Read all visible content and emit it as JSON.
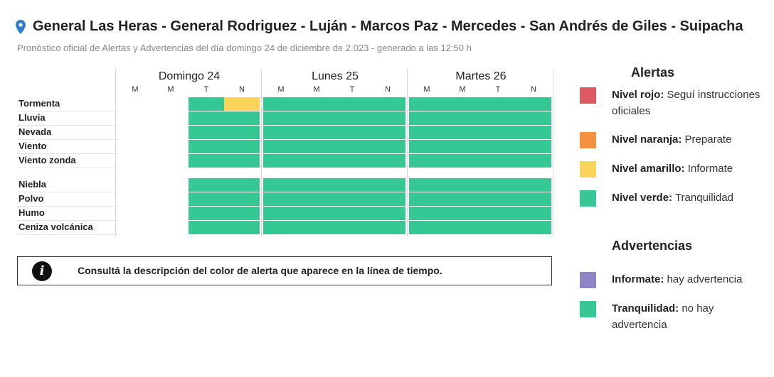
{
  "header": {
    "title": "General Las Heras - General Rodriguez - Luján - Marcos Paz - Mercedes - San Andrés de Giles - Suipacha",
    "subtitle": "Pronóstico oficial de Alertas y Advertencias del día domingo 24 de diciembre de 2.023 - generado a las 12:50 h",
    "icon": "location-pin-icon"
  },
  "colors": {
    "rojo": "#dc5b62",
    "naranja": "#f59242",
    "amarillo": "#fdd35b",
    "verde": "#35c895",
    "violeta": "#8e84c6",
    "empty": "#ffffff"
  },
  "timeline": {
    "days": [
      "Domingo 24",
      "Lunes 25",
      "Martes 26"
    ],
    "periods": [
      "M",
      "M",
      "T",
      "N"
    ],
    "rows": [
      {
        "label": "Tormenta",
        "levels": [
          "none",
          "none",
          "verde",
          "amarillo",
          "verde",
          "verde",
          "verde",
          "verde",
          "verde",
          "verde",
          "verde",
          "verde"
        ]
      },
      {
        "label": "Lluvia",
        "levels": [
          "none",
          "none",
          "verde",
          "verde",
          "verde",
          "verde",
          "verde",
          "verde",
          "verde",
          "verde",
          "verde",
          "verde"
        ]
      },
      {
        "label": "Nevada",
        "levels": [
          "none",
          "none",
          "verde",
          "verde",
          "verde",
          "verde",
          "verde",
          "verde",
          "verde",
          "verde",
          "verde",
          "verde"
        ]
      },
      {
        "label": "Viento",
        "levels": [
          "none",
          "none",
          "verde",
          "verde",
          "verde",
          "verde",
          "verde",
          "verde",
          "verde",
          "verde",
          "verde",
          "verde"
        ]
      },
      {
        "label": "Viento zonda",
        "levels": [
          "none",
          "none",
          "verde",
          "verde",
          "verde",
          "verde",
          "verde",
          "verde",
          "verde",
          "verde",
          "verde",
          "verde"
        ]
      },
      {
        "label": "Niebla",
        "levels": [
          "none",
          "none",
          "verde",
          "verde",
          "verde",
          "verde",
          "verde",
          "verde",
          "verde",
          "verde",
          "verde",
          "verde"
        ]
      },
      {
        "label": "Polvo",
        "levels": [
          "none",
          "none",
          "verde",
          "verde",
          "verde",
          "verde",
          "verde",
          "verde",
          "verde",
          "verde",
          "verde",
          "verde"
        ]
      },
      {
        "label": "Humo",
        "levels": [
          "none",
          "none",
          "verde",
          "verde",
          "verde",
          "verde",
          "verde",
          "verde",
          "verde",
          "verde",
          "verde",
          "verde"
        ]
      },
      {
        "label": "Ceniza volcánica",
        "levels": [
          "none",
          "none",
          "verde",
          "verde",
          "verde",
          "verde",
          "verde",
          "verde",
          "verde",
          "verde",
          "verde",
          "verde"
        ]
      }
    ]
  },
  "info": {
    "icon": "info-icon",
    "icon_glyph": "i",
    "text": "Consultá la descripción del color de alerta que aparece en la línea de tiempo."
  },
  "legend": {
    "alertas_title": "Alertas",
    "alertas": [
      {
        "color": "rojo",
        "name": "Nivel rojo:",
        "desc": " Seguí instrucciones oficiales"
      },
      {
        "color": "naranja",
        "name": "Nivel naranja:",
        "desc": " Preparate"
      },
      {
        "color": "amarillo",
        "name": "Nivel amarillo:",
        "desc": " Informate"
      },
      {
        "color": "verde",
        "name": "Nivel verde:",
        "desc": " Tranquilidad"
      }
    ],
    "advertencias_title": "Advertencias",
    "advertencias": [
      {
        "color": "violeta",
        "name": "Informate:",
        "desc": " hay advertencia"
      },
      {
        "color": "verde",
        "name": "Tranquilidad:",
        "desc": " no hay advertencia"
      }
    ]
  }
}
